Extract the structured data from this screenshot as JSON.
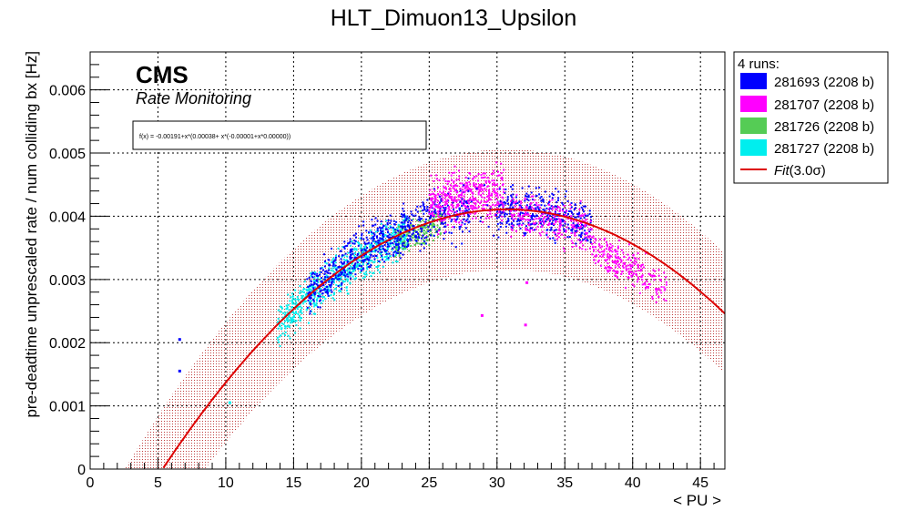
{
  "chart_data": {
    "type": "scatter",
    "title": "HLT_Dimuon13_Upsilon",
    "xlabel": "< PU >",
    "ylabel": "pre-deadtime unprescaled rate / num colliding bx [Hz]",
    "xlim": [
      0,
      46.8
    ],
    "ylim": [
      0,
      0.0066
    ],
    "x_ticks": [
      0,
      5,
      10,
      15,
      20,
      25,
      30,
      35,
      40,
      45
    ],
    "x_tick_labels": [
      "0",
      "5",
      "10",
      "15",
      "20",
      "25",
      "30",
      "35",
      "40",
      "45"
    ],
    "y_ticks": [
      0,
      0.001,
      0.002,
      0.003,
      0.004,
      0.005,
      0.006
    ],
    "y_tick_labels": [
      "0",
      "0.001",
      "0.002",
      "0.003",
      "0.004",
      "0.005",
      "0.006"
    ],
    "grid": true,
    "cms_label": "CMS",
    "subtitle": "Rate Monitoring",
    "formula": "f(x) = -0.00191+x*(0.00038+ x*(-0.00001+x*0.00000))",
    "legend": {
      "header": "4 runs:",
      "placement": "outside-right",
      "entries": [
        {
          "label": "281693 (2208 b)",
          "color": "#0000ff"
        },
        {
          "label": "281707 (2208 b)",
          "color": "#ff00ff"
        },
        {
          "label": "281726 (2208 b)",
          "color": "#55cc55"
        },
        {
          "label": "281727 (2208 b)",
          "color": "#00eeee"
        }
      ],
      "fit_label": "Fit",
      "fit_suffix": "(3.0σ)"
    },
    "series": [
      {
        "name": "281693 (2208 b)",
        "color": "#0000ff",
        "x_range": [
          14,
          37
        ],
        "cloud": [
          {
            "x": [
              16,
              24
            ],
            "center_offset": 5e-05,
            "spread": 0.00032,
            "n": 450
          },
          {
            "x": [
              24,
              28
            ],
            "center_offset": 5e-05,
            "spread": 0.00035,
            "n": 150
          },
          {
            "x": [
              30,
              37
            ],
            "center_offset": 0.0,
            "spread": 0.0003,
            "n": 320
          }
        ],
        "outliers": [
          [
            6.6,
            0.00205
          ],
          [
            6.6,
            0.00155
          ]
        ]
      },
      {
        "name": "281707 (2208 b)",
        "color": "#ff00ff",
        "cloud": [
          {
            "x": [
              25,
              30.5
            ],
            "center_offset": 0.00025,
            "spread": 0.00035,
            "n": 450
          },
          {
            "x": [
              31,
              37
            ],
            "center_offset": -0.0001,
            "spread": 0.0003,
            "n": 250
          },
          {
            "x": [
              37,
              42.5
            ],
            "center_offset": -0.0004,
            "spread": 0.00025,
            "n": 240
          }
        ],
        "outliers": [
          [
            28.9,
            0.00243
          ],
          [
            32.1,
            0.00228
          ],
          [
            32.2,
            0.00295
          ]
        ]
      },
      {
        "name": "281726 (2208 b)",
        "color": "#55cc55",
        "cloud": [
          {
            "x": [
              22.5,
              26
            ],
            "center_offset": -0.0001,
            "spread": 0.00022,
            "n": 180
          }
        ],
        "outliers": []
      },
      {
        "name": "281727 (2208 b)",
        "color": "#00eeee",
        "cloud": [
          {
            "x": [
              13.8,
              23.5
            ],
            "center_offset": -5e-05,
            "spread": 0.00028,
            "n": 700
          }
        ],
        "outliers": [
          [
            10.3,
            0.00105
          ]
        ]
      }
    ],
    "fit": {
      "name": "Fit(3.0σ)",
      "color": "#dd0000",
      "coefficients": [
        -0.00191,
        0.00038,
        -1e-05,
        0.0
      ],
      "band_sigma": 3.0,
      "band_halfwidth": 0.00095,
      "band_color": "#cc5555"
    }
  }
}
